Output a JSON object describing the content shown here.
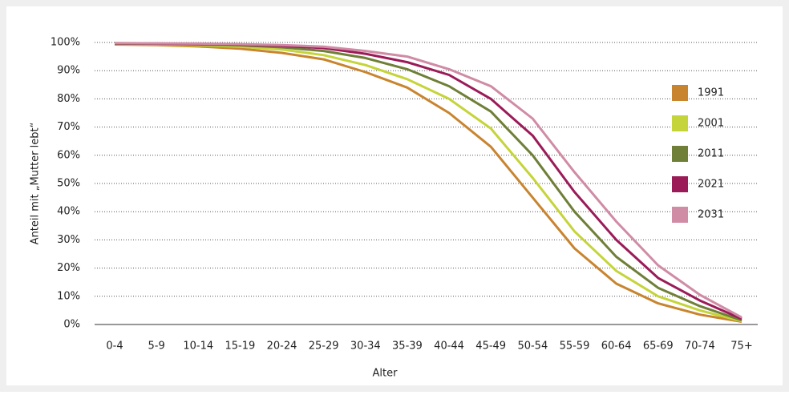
{
  "chart_data": {
    "type": "line",
    "x_label": "Alter",
    "y_label": "Anteil mit „Mutter lebt“",
    "categories": [
      "0-4",
      "5-9",
      "10-14",
      "15-19",
      "20-24",
      "25-29",
      "30-34",
      "35-39",
      "40-44",
      "45-49",
      "50-54",
      "55-59",
      "60-64",
      "65-69",
      "70-74",
      "75+"
    ],
    "series": [
      {
        "name": "1991",
        "color": "#c8842f",
        "values": [
          99.3,
          99.1,
          98.6,
          97.8,
          96.3,
          94,
          89.5,
          84,
          75,
          63,
          45,
          27,
          14.5,
          7.5,
          3.5,
          1
        ]
      },
      {
        "name": "2001",
        "color": "#c5d43a",
        "values": [
          99.5,
          99.3,
          99,
          98.5,
          97.5,
          95.5,
          92,
          87,
          80,
          69.5,
          52,
          33,
          19,
          10,
          5,
          1.2
        ]
      },
      {
        "name": "2011",
        "color": "#6f7f38",
        "values": [
          99.6,
          99.5,
          99.3,
          99,
          98.3,
          97,
          94.5,
          90.5,
          84.5,
          75.5,
          60,
          40,
          24,
          13,
          6.5,
          1.5
        ]
      },
      {
        "name": "2021",
        "color": "#9a1b58",
        "values": [
          99.7,
          99.6,
          99.5,
          99.2,
          98.8,
          98,
          96,
          93,
          88.5,
          80,
          67,
          47,
          30,
          16.5,
          8.5,
          2
        ]
      },
      {
        "name": "2031",
        "color": "#d08ba5",
        "values": [
          99.8,
          99.7,
          99.6,
          99.4,
          99.1,
          98.5,
          97,
          95,
          90.5,
          84.5,
          73,
          54,
          36.5,
          21,
          10.5,
          2.5
        ]
      }
    ],
    "ylim": [
      0,
      100
    ],
    "yticks": [
      {
        "value": 0,
        "label": "0%"
      },
      {
        "value": 10,
        "label": "10%"
      },
      {
        "value": 20,
        "label": "20%"
      },
      {
        "value": 30,
        "label": "30%"
      },
      {
        "value": 40,
        "label": "40%"
      },
      {
        "value": 50,
        "label": "50%"
      },
      {
        "value": 60,
        "label": "60%"
      },
      {
        "value": 70,
        "label": "70%"
      },
      {
        "value": 80,
        "label": "80%"
      },
      {
        "value": 90,
        "label": "90%"
      },
      {
        "value": 100,
        "label": "100%"
      }
    ],
    "grid": true,
    "legend": "right"
  }
}
